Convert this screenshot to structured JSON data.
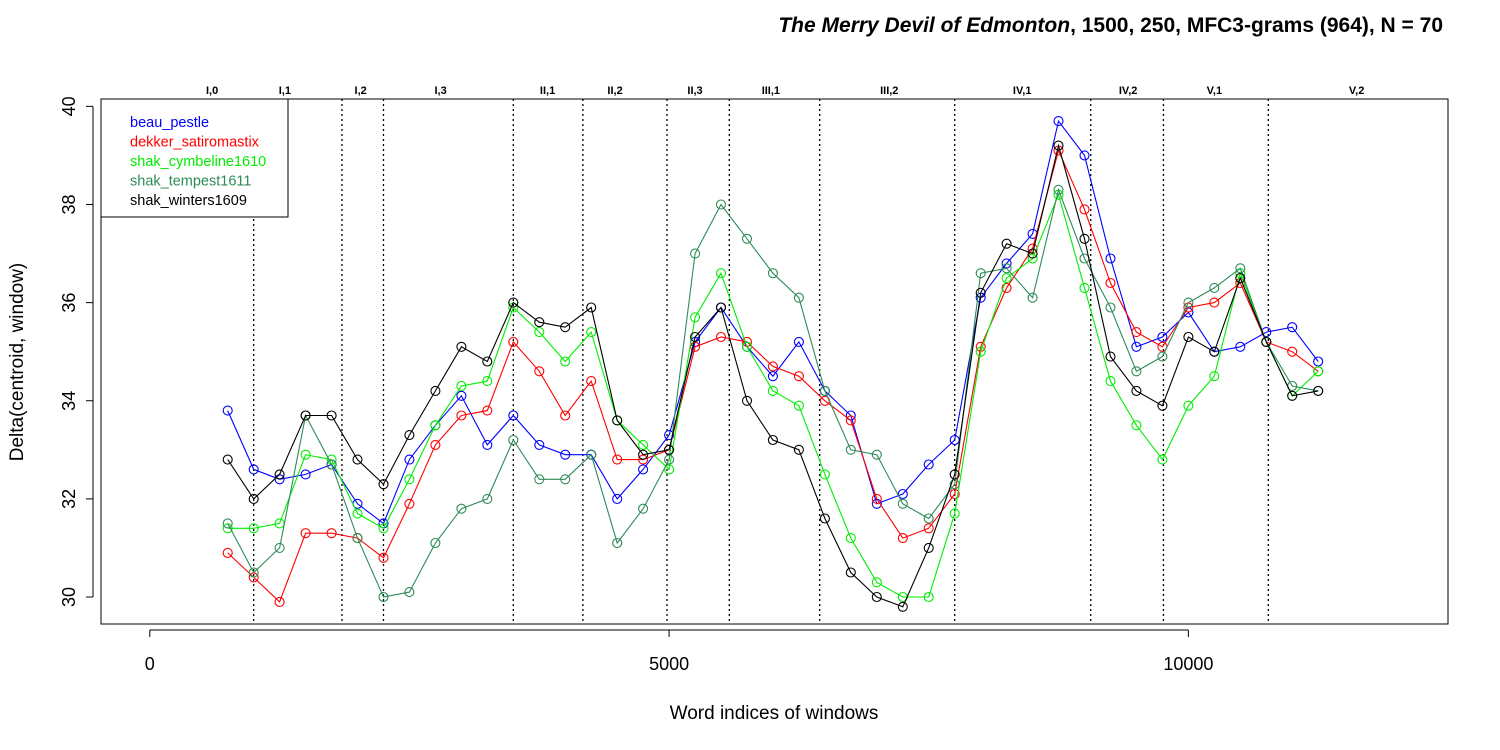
{
  "chart_data": {
    "type": "line",
    "title_italic": "The Merry Devil of Edmonton",
    "title_rest": ", 1500, 250, MFC3-grams (964), N = 70",
    "xlabel": "Word indices of windows",
    "ylabel": "Delta(centroid, window)",
    "xlim": [
      -470,
      12500
    ],
    "ylim": [
      29.45,
      40.15
    ],
    "x_ticks": [
      0,
      5000,
      10000
    ],
    "x_tick_labels": [
      "0",
      "5000",
      "10000"
    ],
    "y_ticks": [
      30,
      32,
      34,
      36,
      38,
      40
    ],
    "y_tick_labels": [
      "30",
      "32",
      "34",
      "36",
      "38",
      "40"
    ],
    "grid": false,
    "legend_position": "top-left",
    "act_boundaries": [
      1000,
      1850,
      2250,
      3500,
      4170,
      4980,
      5580,
      6450,
      7750,
      9060,
      9760,
      10770
    ],
    "act_labels": [
      {
        "label": "I,0",
        "x": 600
      },
      {
        "label": "I,1",
        "x": 1300
      },
      {
        "label": "I,2",
        "x": 2030
      },
      {
        "label": "I,3",
        "x": 2800
      },
      {
        "label": "II,1",
        "x": 3830
      },
      {
        "label": "II,2",
        "x": 4480
      },
      {
        "label": "II,3",
        "x": 5250
      },
      {
        "label": "III,1",
        "x": 5980
      },
      {
        "label": "III,2",
        "x": 7120
      },
      {
        "label": "IV,1",
        "x": 8400
      },
      {
        "label": "IV,2",
        "x": 9420
      },
      {
        "label": "V,1",
        "x": 10250
      },
      {
        "label": "V,2",
        "x": 11620
      }
    ],
    "x": [
      750,
      1000,
      1250,
      1500,
      1750,
      2000,
      2250,
      2500,
      2750,
      3000,
      3250,
      3500,
      3750,
      4000,
      4250,
      4500,
      4750,
      5000,
      5250,
      5500,
      5750,
      6000,
      6250,
      6500,
      6750,
      7000,
      7250,
      7500,
      7750,
      8000,
      8250,
      8500,
      8750,
      9000,
      9250,
      9500,
      9750,
      10000,
      10250,
      10500,
      10750,
      11000,
      11250
    ],
    "series": [
      {
        "name": "beau_pestle",
        "color": "#0000ff",
        "values": [
          33.8,
          32.6,
          32.4,
          32.5,
          32.7,
          31.9,
          31.5,
          32.8,
          33.5,
          34.1,
          33.1,
          33.7,
          33.1,
          32.9,
          32.9,
          32.0,
          32.6,
          33.3,
          35.2,
          35.9,
          35.1,
          34.5,
          35.2,
          34.2,
          33.7,
          31.9,
          32.1,
          32.7,
          33.2,
          36.1,
          36.8,
          37.4,
          39.7,
          39.0,
          36.9,
          35.1,
          35.3,
          35.8,
          35.0,
          35.1,
          35.4,
          35.5,
          34.8
        ]
      },
      {
        "name": "dekker_satiromastix",
        "color": "#ff0000",
        "values": [
          30.9,
          30.4,
          29.9,
          31.3,
          31.3,
          31.2,
          30.8,
          31.9,
          33.1,
          33.7,
          33.8,
          35.2,
          34.6,
          33.7,
          34.4,
          32.8,
          32.8,
          33.0,
          35.1,
          35.3,
          35.2,
          34.7,
          34.5,
          34.0,
          33.6,
          32.0,
          31.2,
          31.4,
          32.1,
          35.1,
          36.3,
          37.1,
          39.1,
          37.9,
          36.4,
          35.4,
          35.1,
          35.9,
          36.0,
          36.4,
          35.2,
          35.0,
          34.6
        ]
      },
      {
        "name": "shak_cymbeline1610",
        "color": "#00ee00",
        "values": [
          31.4,
          31.4,
          31.5,
          32.9,
          32.8,
          31.7,
          31.4,
          32.4,
          33.5,
          34.3,
          34.4,
          35.9,
          35.4,
          34.8,
          35.4,
          33.6,
          33.1,
          32.6,
          35.7,
          36.6,
          35.1,
          34.2,
          33.9,
          32.5,
          31.2,
          30.3,
          30.0,
          30.0,
          31.7,
          35.0,
          36.5,
          36.9,
          38.2,
          36.3,
          34.4,
          33.5,
          32.8,
          33.9,
          34.5,
          36.6,
          35.2,
          34.1,
          34.6
        ]
      },
      {
        "name": "shak_tempest1611",
        "color": "#2e8b57",
        "values": [
          31.5,
          30.5,
          31.0,
          33.7,
          32.7,
          31.2,
          30.0,
          30.1,
          31.1,
          31.8,
          32.0,
          33.2,
          32.4,
          32.4,
          32.9,
          31.1,
          31.8,
          32.8,
          37.0,
          38.0,
          37.3,
          36.6,
          36.1,
          34.2,
          33.0,
          32.9,
          31.9,
          31.6,
          32.3,
          36.6,
          36.7,
          36.1,
          38.3,
          36.9,
          35.9,
          34.6,
          34.9,
          36.0,
          36.3,
          36.7,
          35.2,
          34.3,
          34.2
        ]
      },
      {
        "name": "shak_winters1609",
        "color": "#000000",
        "values": [
          32.8,
          32.0,
          32.5,
          33.7,
          33.7,
          32.8,
          32.3,
          33.3,
          34.2,
          35.1,
          34.8,
          36.0,
          35.6,
          35.5,
          35.9,
          33.6,
          32.9,
          33.0,
          35.3,
          35.9,
          34.0,
          33.2,
          33.0,
          31.6,
          30.5,
          30.0,
          29.8,
          31.0,
          32.5,
          36.2,
          37.2,
          37.0,
          39.2,
          37.3,
          34.9,
          34.2,
          33.9,
          35.3,
          35.0,
          36.5,
          35.2,
          34.1,
          34.2
        ]
      }
    ]
  }
}
